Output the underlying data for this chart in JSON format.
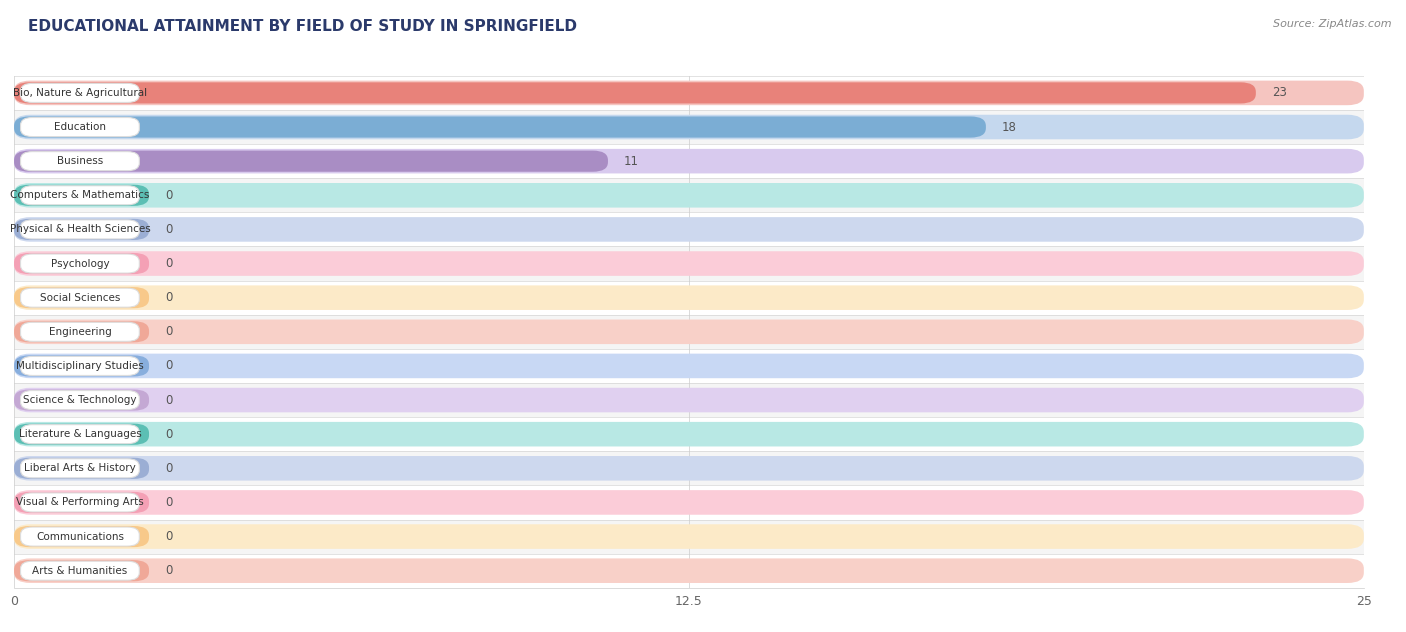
{
  "title": "EDUCATIONAL ATTAINMENT BY FIELD OF STUDY IN SPRINGFIELD",
  "source": "Source: ZipAtlas.com",
  "categories": [
    "Bio, Nature & Agricultural",
    "Education",
    "Business",
    "Computers & Mathematics",
    "Physical & Health Sciences",
    "Psychology",
    "Social Sciences",
    "Engineering",
    "Multidisciplinary Studies",
    "Science & Technology",
    "Literature & Languages",
    "Liberal Arts & History",
    "Visual & Performing Arts",
    "Communications",
    "Arts & Humanities"
  ],
  "values": [
    23,
    18,
    11,
    0,
    0,
    0,
    0,
    0,
    0,
    0,
    0,
    0,
    0,
    0,
    0
  ],
  "bar_colors": [
    "#E8827A",
    "#7BADD4",
    "#A98DC4",
    "#5CBFB4",
    "#9BAED4",
    "#F4A0B5",
    "#F8C98A",
    "#F0A898",
    "#88AEDD",
    "#C4A8D4",
    "#5CBFB4",
    "#9BAED4",
    "#F4A0B5",
    "#F8C98A",
    "#F0A898"
  ],
  "bg_colors": [
    "#F5C5C0",
    "#C5D8EE",
    "#D8CAEE",
    "#B8E8E4",
    "#CDD8EE",
    "#FBCCD8",
    "#FCEAC8",
    "#F8D0C8",
    "#C8D8F4",
    "#E0D0F0",
    "#B8E8E4",
    "#CDD8EE",
    "#FBCCD8",
    "#FCEAC8",
    "#F8D0C8"
  ],
  "row_bg_colors": [
    "#FFFFFF",
    "#F5F5F5"
  ],
  "xlim": [
    0,
    25
  ],
  "xticks": [
    0,
    12.5,
    25
  ],
  "title_fontsize": 11,
  "figsize": [
    14.06,
    6.32
  ],
  "dpi": 100,
  "min_bar_display": 2.5
}
